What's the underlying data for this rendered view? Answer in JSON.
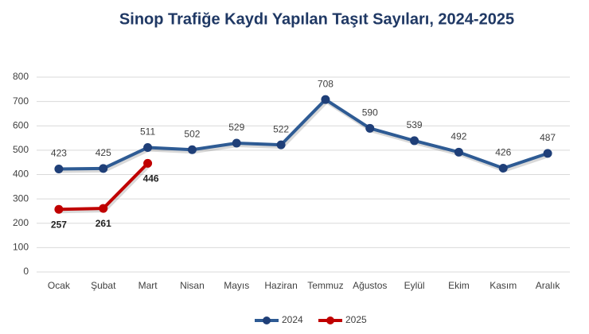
{
  "chart_data": {
    "type": "line",
    "title": "Sinop Trafiğe Kaydı Yapılan Taşıt Sayıları, 2024-2025",
    "categories": [
      "Ocak",
      "Şubat",
      "Mart",
      "Nisan",
      "Mayıs",
      "Haziran",
      "Temmuz",
      "Ağustos",
      "Eylül",
      "Ekim",
      "Kasım",
      "Aralık"
    ],
    "series": [
      {
        "name": "2024",
        "color": "#2e5b94",
        "values": [
          423,
          425,
          511,
          502,
          529,
          522,
          708,
          590,
          539,
          492,
          426,
          487
        ]
      },
      {
        "name": "2025",
        "color": "#c00000",
        "values": [
          257,
          261,
          446,
          null,
          null,
          null,
          null,
          null,
          null,
          null,
          null,
          null
        ]
      }
    ],
    "ylim": [
      0,
      800
    ],
    "yticks": [
      0,
      100,
      200,
      300,
      400,
      500,
      600,
      700,
      800
    ],
    "grid": true,
    "legend": "bottom"
  }
}
